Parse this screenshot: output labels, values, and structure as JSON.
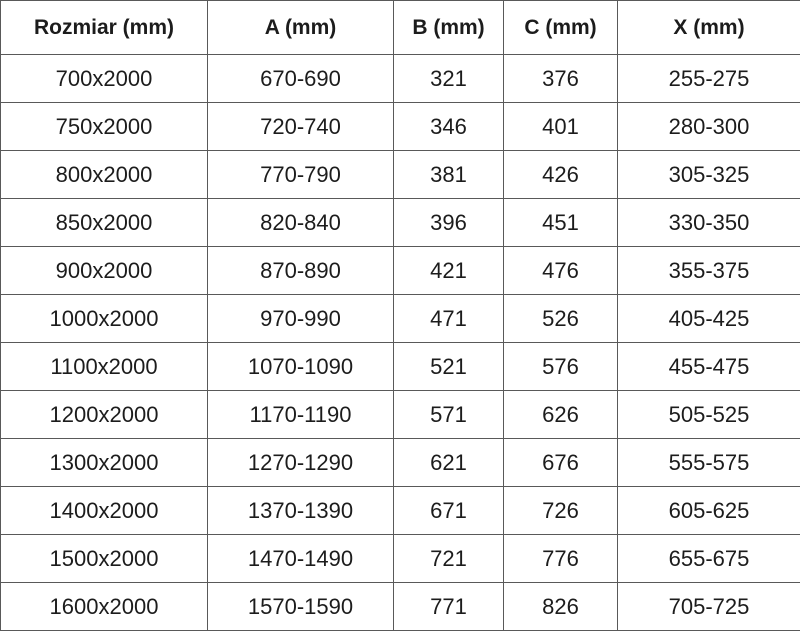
{
  "table": {
    "columns": [
      "Rozmiar (mm)",
      "A (mm)",
      "B (mm)",
      "C (mm)",
      "X (mm)"
    ],
    "rows": [
      [
        "700x2000",
        "670-690",
        "321",
        "376",
        "255-275"
      ],
      [
        "750x2000",
        "720-740",
        "346",
        "401",
        "280-300"
      ],
      [
        "800x2000",
        "770-790",
        "381",
        "426",
        "305-325"
      ],
      [
        "850x2000",
        "820-840",
        "396",
        "451",
        "330-350"
      ],
      [
        "900x2000",
        "870-890",
        "421",
        "476",
        "355-375"
      ],
      [
        "1000x2000",
        "970-990",
        "471",
        "526",
        "405-425"
      ],
      [
        "1100x2000",
        "1070-1090",
        "521",
        "576",
        "455-475"
      ],
      [
        "1200x2000",
        "1170-1190",
        "571",
        "626",
        "505-525"
      ],
      [
        "1300x2000",
        "1270-1290",
        "621",
        "676",
        "555-575"
      ],
      [
        "1400x2000",
        "1370-1390",
        "671",
        "726",
        "605-625"
      ],
      [
        "1500x2000",
        "1470-1490",
        "721",
        "776",
        "655-675"
      ],
      [
        "1600x2000",
        "1570-1590",
        "771",
        "826",
        "705-725"
      ]
    ]
  },
  "colors": {
    "border": "#595959",
    "text": "#1c1c1c",
    "background": "#ffffff"
  }
}
